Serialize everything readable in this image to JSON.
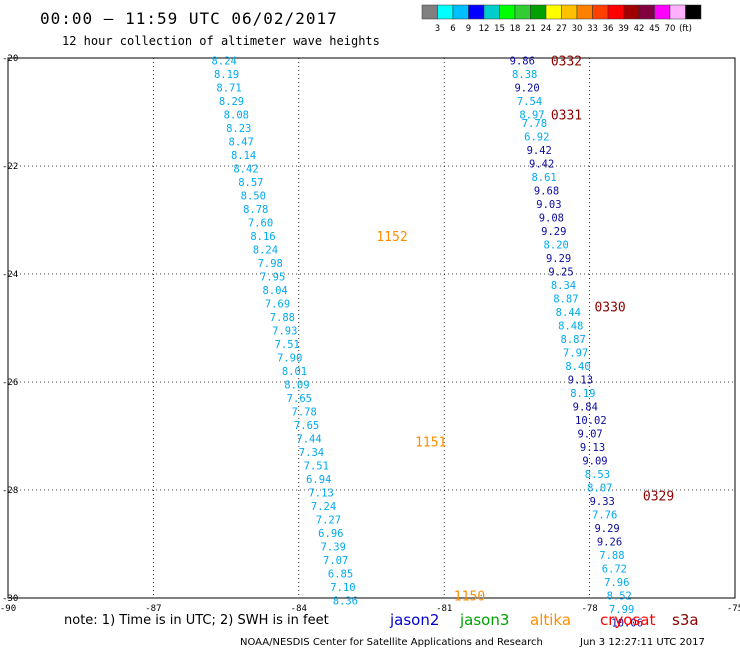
{
  "header": {
    "title": "00:00 – 11:59 UTC 06/02/2017",
    "subtitle": "12 hour collection of altimeter wave heights"
  },
  "color_scale": {
    "colors": [
      "#808080",
      "#00ffff",
      "#00bfff",
      "#0000ff",
      "#00cdcd",
      "#00ff00",
      "#32cd32",
      "#00a000",
      "#ffff00",
      "#ffc000",
      "#ff8000",
      "#ff4000",
      "#ff0000",
      "#a00000",
      "#800040",
      "#ff00ff",
      "#ffb0ff",
      "#000000"
    ],
    "labels": [
      "3",
      "6",
      "9",
      "12",
      "15",
      "18",
      "21",
      "24",
      "27",
      "30",
      "33",
      "36",
      "39",
      "42",
      "45",
      "70",
      "(ft)"
    ]
  },
  "note": "note:  1) Time is in UTC;  2) SWH is in feet",
  "satellites": [
    {
      "name": "jason2",
      "color": "#0000cd"
    },
    {
      "name": "jason3",
      "color": "#00a000"
    },
    {
      "name": "altika",
      "color": "#ff8c00"
    },
    {
      "name": "cryosat",
      "color": "#ff0000"
    },
    {
      "name": "s3a",
      "color": "#8b0000"
    }
  ],
  "credit": "NOAA/NESDIS Center for Satellite Applications and Research",
  "timestamp": "Jun  3 12:27:11 UTC 2017",
  "chart_data": {
    "type": "scatter",
    "xlim": [
      -90,
      -75
    ],
    "ylim": [
      -30,
      -20
    ],
    "x_ticks": [
      "-90",
      "-87",
      "-84",
      "-81",
      "-78",
      "-75"
    ],
    "x_tick_values": [
      -90,
      -87,
      -84,
      -81,
      -78,
      -75
    ],
    "y_ticks": [
      "-20",
      "-22",
      "-24",
      "-26",
      "-28",
      "-30"
    ],
    "y_tick_values": [
      -20,
      -22,
      -24,
      -26,
      -28,
      -30
    ],
    "grid": true,
    "series": [
      {
        "name": "altika",
        "color": "#00aaee",
        "time_labels": [
          {
            "lon": -82.4,
            "lat": -23.3,
            "label": "1152"
          },
          {
            "lon": -81.6,
            "lat": -27.1,
            "label": "1151"
          },
          {
            "lon": -80.8,
            "lat": -29.95,
            "label": "1150"
          }
        ],
        "points": [
          {
            "lon": -85.8,
            "lat": -20.05,
            "v": "8.24"
          },
          {
            "lon": -85.75,
            "lat": -20.3,
            "v": "8.19"
          },
          {
            "lon": -85.7,
            "lat": -20.55,
            "v": "8.71"
          },
          {
            "lon": -85.65,
            "lat": -20.8,
            "v": "8.29"
          },
          {
            "lon": -85.55,
            "lat": -21.05,
            "v": "8.08"
          },
          {
            "lon": -85.5,
            "lat": -21.3,
            "v": "8.23"
          },
          {
            "lon": -85.45,
            "lat": -21.55,
            "v": "8.47"
          },
          {
            "lon": -85.4,
            "lat": -21.8,
            "v": "8.14"
          },
          {
            "lon": -85.35,
            "lat": -22.05,
            "v": "8.42"
          },
          {
            "lon": -85.25,
            "lat": -22.3,
            "v": "8.57"
          },
          {
            "lon": -85.2,
            "lat": -22.55,
            "v": "8.50"
          },
          {
            "lon": -85.15,
            "lat": -22.8,
            "v": "8.78"
          },
          {
            "lon": -85.05,
            "lat": -23.05,
            "v": "7.60"
          },
          {
            "lon": -85.0,
            "lat": -23.3,
            "v": "8.16"
          },
          {
            "lon": -84.95,
            "lat": -23.55,
            "v": "8.24"
          },
          {
            "lon": -84.85,
            "lat": -23.8,
            "v": "7.98"
          },
          {
            "lon": -84.8,
            "lat": -24.05,
            "v": "7.95"
          },
          {
            "lon": -84.75,
            "lat": -24.3,
            "v": "8.04"
          },
          {
            "lon": -84.7,
            "lat": -24.55,
            "v": "7.69"
          },
          {
            "lon": -84.6,
            "lat": -24.8,
            "v": "7.88"
          },
          {
            "lon": -84.55,
            "lat": -25.05,
            "v": "7.93"
          },
          {
            "lon": -84.5,
            "lat": -25.3,
            "v": "7.51"
          },
          {
            "lon": -84.45,
            "lat": -25.55,
            "v": "7.90"
          },
          {
            "lon": -84.35,
            "lat": -25.8,
            "v": "8.01"
          },
          {
            "lon": -84.3,
            "lat": -26.05,
            "v": "8.09"
          },
          {
            "lon": -84.25,
            "lat": -26.3,
            "v": "7.65"
          },
          {
            "lon": -84.15,
            "lat": -26.55,
            "v": "7.78"
          },
          {
            "lon": -84.1,
            "lat": -26.8,
            "v": "7.65"
          },
          {
            "lon": -84.05,
            "lat": -27.05,
            "v": "7.44"
          },
          {
            "lon": -84.0,
            "lat": -27.3,
            "v": "7.34"
          },
          {
            "lon": -83.9,
            "lat": -27.55,
            "v": "7.51"
          },
          {
            "lon": -83.85,
            "lat": -27.8,
            "v": "6.94"
          },
          {
            "lon": -83.8,
            "lat": -28.05,
            "v": "7.13"
          },
          {
            "lon": -83.75,
            "lat": -28.3,
            "v": "7.24"
          },
          {
            "lon": -83.65,
            "lat": -28.55,
            "v": "7.27"
          },
          {
            "lon": -83.6,
            "lat": -28.8,
            "v": "6.96"
          },
          {
            "lon": -83.55,
            "lat": -29.05,
            "v": "7.39"
          },
          {
            "lon": -83.5,
            "lat": -29.3,
            "v": "7.07"
          },
          {
            "lon": -83.4,
            "lat": -29.55,
            "v": "6.85"
          },
          {
            "lon": -83.35,
            "lat": -29.8,
            "v": "7.10"
          },
          {
            "lon": -83.3,
            "lat": -30.05,
            "v": "8.36"
          }
        ]
      },
      {
        "name": "s3a",
        "color": "#0a0aa0",
        "time_labels": [
          {
            "lon": -78.8,
            "lat": -20.05,
            "label": "0332"
          },
          {
            "lon": -78.8,
            "lat": -21.05,
            "label": "0331"
          },
          {
            "lon": -77.9,
            "lat": -24.6,
            "label": "0330"
          },
          {
            "lon": -76.9,
            "lat": -28.1,
            "label": "0329"
          }
        ],
        "points": [
          {
            "lon": -79.65,
            "lat": -20.05,
            "v": "9.86",
            "c": "#0a0aa0"
          },
          {
            "lon": -79.6,
            "lat": -20.3,
            "v": "8.38",
            "c": "#00aaee"
          },
          {
            "lon": -79.55,
            "lat": -20.55,
            "v": "9.20",
            "c": "#0a0aa0"
          },
          {
            "lon": -79.5,
            "lat": -20.8,
            "v": "7.54",
            "c": "#00aaee"
          },
          {
            "lon": -79.45,
            "lat": -21.05,
            "v": "8.97",
            "c": "#00aaee"
          },
          {
            "lon": -79.4,
            "lat": -21.2,
            "v": "7.78",
            "c": "#00aaee"
          },
          {
            "lon": -79.35,
            "lat": -21.45,
            "v": "6.92",
            "c": "#00aaee"
          },
          {
            "lon": -79.3,
            "lat": -21.7,
            "v": "9.42",
            "c": "#0a0aa0"
          },
          {
            "lon": -79.25,
            "lat": -21.95,
            "v": "9.42",
            "c": "#0a0aa0"
          },
          {
            "lon": -79.2,
            "lat": -22.2,
            "v": "8.61",
            "c": "#00aaee"
          },
          {
            "lon": -79.15,
            "lat": -22.45,
            "v": "9.68",
            "c": "#0a0aa0"
          },
          {
            "lon": -79.1,
            "lat": -22.7,
            "v": "9.03",
            "c": "#0a0aa0"
          },
          {
            "lon": -79.05,
            "lat": -22.95,
            "v": "9.08",
            "c": "#0a0aa0"
          },
          {
            "lon": -79.0,
            "lat": -23.2,
            "v": "9.29",
            "c": "#0a0aa0"
          },
          {
            "lon": -78.95,
            "lat": -23.45,
            "v": "8.20",
            "c": "#00aaee"
          },
          {
            "lon": -78.9,
            "lat": -23.7,
            "v": "9.29",
            "c": "#0a0aa0"
          },
          {
            "lon": -78.85,
            "lat": -23.95,
            "v": "9.25",
            "c": "#0a0aa0"
          },
          {
            "lon": -78.8,
            "lat": -24.2,
            "v": "8.34",
            "c": "#00aaee"
          },
          {
            "lon": -78.75,
            "lat": -24.45,
            "v": "8.87",
            "c": "#00aaee"
          },
          {
            "lon": -78.7,
            "lat": -24.7,
            "v": "8.44",
            "c": "#00aaee"
          },
          {
            "lon": -78.65,
            "lat": -24.95,
            "v": "8.48",
            "c": "#00aaee"
          },
          {
            "lon": -78.6,
            "lat": -25.2,
            "v": "8.87",
            "c": "#00aaee"
          },
          {
            "lon": -78.55,
            "lat": -25.45,
            "v": "7.97",
            "c": "#00aaee"
          },
          {
            "lon": -78.5,
            "lat": -25.7,
            "v": "8.40",
            "c": "#00aaee"
          },
          {
            "lon": -78.45,
            "lat": -25.95,
            "v": "9.13",
            "c": "#0a0aa0"
          },
          {
            "lon": -78.4,
            "lat": -26.2,
            "v": "8.19",
            "c": "#00aaee"
          },
          {
            "lon": -78.35,
            "lat": -26.45,
            "v": "9.84",
            "c": "#0a0aa0"
          },
          {
            "lon": -78.3,
            "lat": -26.7,
            "v": "10.02",
            "c": "#0a0aa0"
          },
          {
            "lon": -78.25,
            "lat": -26.95,
            "v": "9.07",
            "c": "#0a0aa0"
          },
          {
            "lon": -78.2,
            "lat": -27.2,
            "v": "9.13",
            "c": "#0a0aa0"
          },
          {
            "lon": -78.15,
            "lat": -27.45,
            "v": "9.09",
            "c": "#0a0aa0"
          },
          {
            "lon": -78.1,
            "lat": -27.7,
            "v": "8.53",
            "c": "#00aaee"
          },
          {
            "lon": -78.05,
            "lat": -27.95,
            "v": "8.07",
            "c": "#00aaee"
          },
          {
            "lon": -78.0,
            "lat": -28.2,
            "v": "9.33",
            "c": "#0a0aa0"
          },
          {
            "lon": -77.95,
            "lat": -28.45,
            "v": "7.76",
            "c": "#00aaee"
          },
          {
            "lon": -77.9,
            "lat": -28.7,
            "v": "9.29",
            "c": "#0a0aa0"
          },
          {
            "lon": -77.85,
            "lat": -28.95,
            "v": "9.26",
            "c": "#0a0aa0"
          },
          {
            "lon": -77.8,
            "lat": -29.2,
            "v": "7.88",
            "c": "#00aaee"
          },
          {
            "lon": -77.75,
            "lat": -29.45,
            "v": "6.72",
            "c": "#00aaee"
          },
          {
            "lon": -77.7,
            "lat": -29.7,
            "v": "7.96",
            "c": "#00aaee"
          },
          {
            "lon": -77.65,
            "lat": -29.95,
            "v": "8.52",
            "c": "#00aaee"
          },
          {
            "lon": -77.6,
            "lat": -30.2,
            "v": "7.99",
            "c": "#00aaee"
          },
          {
            "lon": -77.55,
            "lat": -30.45,
            "v": "10.06",
            "c": "#0a0aa0"
          }
        ]
      }
    ]
  }
}
